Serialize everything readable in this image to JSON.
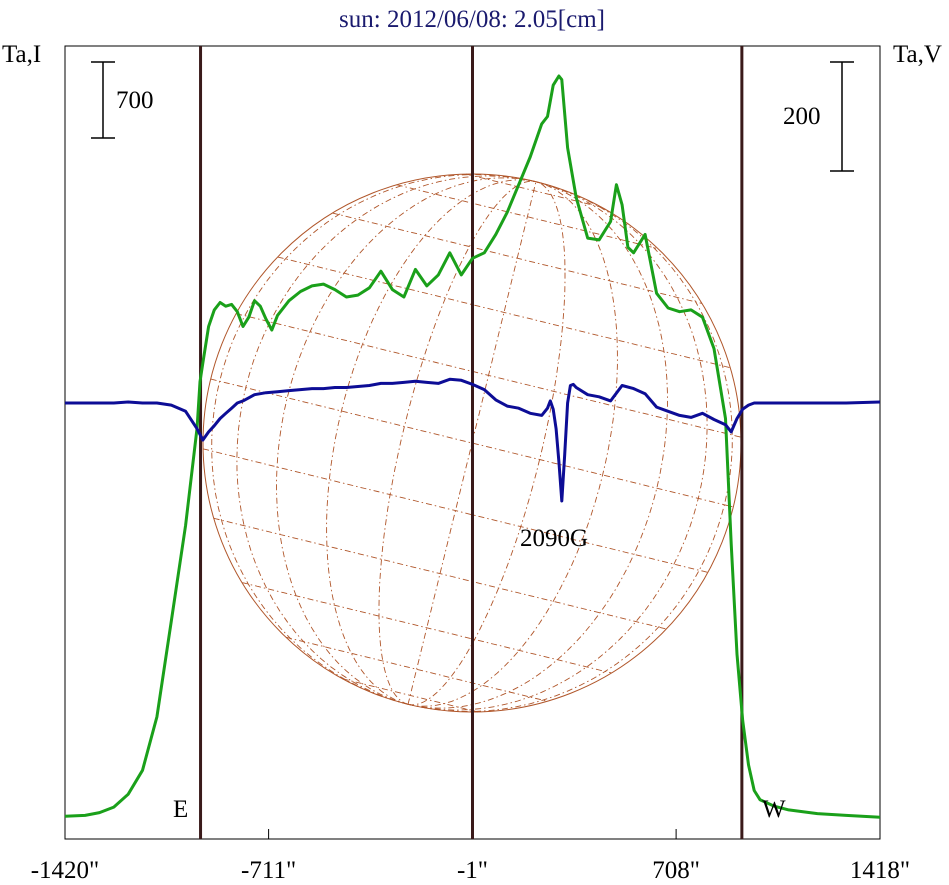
{
  "chart_data": {
    "type": "line",
    "title": "sun: 2012/06/08: 2.05[cm]",
    "colors": {
      "title": "#1a1a6e",
      "intensity": "#1aa01a",
      "polarization": "#0d0d96",
      "limb_lines": "#3a1a1a",
      "disk": "#b0562a",
      "axes": "#000000"
    },
    "x_axis": {
      "range": [
        -1420,
        1418
      ],
      "tick_values": [
        -1420,
        -711,
        -1,
        708,
        1418
      ],
      "tick_labels": [
        "-1420\"",
        "-711\"",
        "-1\"",
        "708\"",
        "1418\""
      ]
    },
    "left_axis_label": "Ta,I",
    "right_axis_label": "Ta,V",
    "left_scale_label": "700",
    "right_scale_label": "200",
    "limb_positions": [
      -948,
      -1,
      937
    ],
    "limb_labels": [
      "E",
      "W"
    ],
    "annotation": "2090G",
    "series": [
      {
        "name": "",
        "type": "intensity",
        "x": [
          -1420,
          -1350,
          -1300,
          -1250,
          -1200,
          -1150,
          -1100,
          -1050,
          -1000,
          -960,
          -950,
          -940,
          -920,
          -900,
          -880,
          -860,
          -840,
          -820,
          -800,
          -780,
          -760,
          -740,
          -720,
          -700,
          -680,
          -640,
          -600,
          -560,
          -520,
          -480,
          -440,
          -400,
          -360,
          -320,
          -280,
          -240,
          -200,
          -160,
          -120,
          -80,
          -40,
          -1,
          40,
          80,
          120,
          160,
          200,
          240,
          260,
          280,
          300,
          310,
          330,
          360,
          400,
          440,
          480,
          500,
          520,
          540,
          560,
          600,
          640,
          680,
          720,
          760,
          800,
          840,
          880,
          900,
          920,
          940,
          960,
          980,
          1000,
          1050,
          1100,
          1150,
          1200,
          1250,
          1300,
          1418
        ],
        "y": [
          20,
          25,
          40,
          70,
          140,
          270,
          560,
          1080,
          1600,
          2130,
          2380,
          2480,
          2680,
          2770,
          2810,
          2790,
          2800,
          2760,
          2680,
          2730,
          2820,
          2790,
          2720,
          2660,
          2740,
          2820,
          2870,
          2900,
          2910,
          2880,
          2840,
          2850,
          2890,
          2980,
          2880,
          2840,
          2990,
          2900,
          2960,
          3080,
          2960,
          3050,
          3080,
          3180,
          3300,
          3450,
          3600,
          3780,
          3820,
          3990,
          4040,
          4020,
          3650,
          3380,
          3160,
          3150,
          3250,
          3450,
          3340,
          3110,
          3080,
          3180,
          2860,
          2780,
          2760,
          2770,
          2730,
          2560,
          2180,
          1500,
          900,
          540,
          300,
          160,
          110,
          75,
          55,
          45,
          35,
          30,
          25,
          15
        ]
      },
      {
        "name": "",
        "type": "polarization",
        "x": [
          -1420,
          -1350,
          -1300,
          -1250,
          -1200,
          -1150,
          -1100,
          -1050,
          -1000,
          -960,
          -940,
          -920,
          -900,
          -880,
          -860,
          -840,
          -820,
          -800,
          -780,
          -760,
          -720,
          -680,
          -640,
          -600,
          -560,
          -520,
          -480,
          -440,
          -400,
          -360,
          -320,
          -280,
          -240,
          -200,
          -160,
          -120,
          -80,
          -40,
          -1,
          40,
          80,
          120,
          160,
          200,
          240,
          260,
          270,
          280,
          290,
          300,
          310,
          320,
          330,
          340,
          350,
          360,
          400,
          440,
          480,
          520,
          560,
          600,
          640,
          680,
          720,
          760,
          800,
          840,
          880,
          900,
          920,
          940,
          960,
          980,
          1000,
          1050,
          1100,
          1150,
          1200,
          1250,
          1300,
          1418
        ],
        "y": [
          0,
          0,
          0,
          0,
          1,
          0,
          0,
          -2,
          -8,
          -25,
          -36,
          -28,
          -22,
          -15,
          -10,
          -5,
          0,
          2,
          5,
          8,
          10,
          11,
          12,
          13,
          14,
          14,
          15,
          15,
          16,
          17,
          19,
          19,
          20,
          21,
          20,
          19,
          23,
          22,
          18,
          13,
          3,
          -3,
          -5,
          -10,
          -12,
          -5,
          2,
          -6,
          -25,
          -57,
          -95,
          -50,
          0,
          17,
          18,
          15,
          8,
          6,
          2,
          17,
          14,
          9,
          -4,
          -8,
          -12,
          -14,
          -10,
          -16,
          -21,
          -28,
          -15,
          -6,
          -2,
          0,
          0,
          0,
          0,
          0,
          0,
          0,
          0,
          1
        ]
      }
    ]
  }
}
